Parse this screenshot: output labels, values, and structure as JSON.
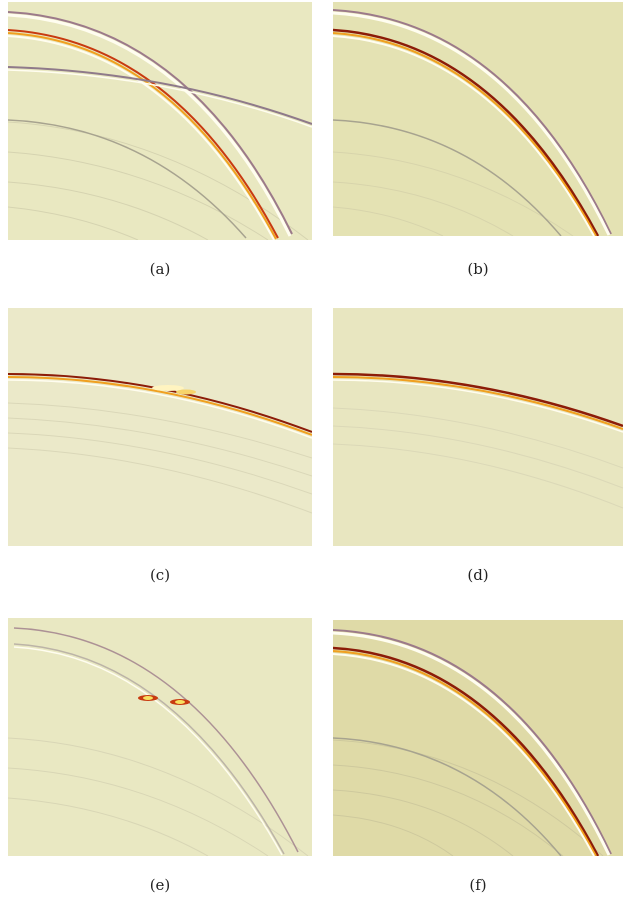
{
  "figure": {
    "panels": [
      {
        "id": "a",
        "caption": "(a)",
        "background": "#e9e8c1"
      },
      {
        "id": "b",
        "caption": "(b)",
        "background": "#e4e2b3"
      },
      {
        "id": "c",
        "caption": "(c)",
        "background": "#ebe9c9"
      },
      {
        "id": "d",
        "caption": "(d)",
        "background": "#e8e6c0"
      },
      {
        "id": "e",
        "caption": "(e)",
        "background": "#e9e8c2"
      },
      {
        "id": "f",
        "caption": "(f)",
        "background": "#dfdaa7"
      }
    ],
    "colors": {
      "dark_red": "#8c1c08",
      "red": "#c83a10",
      "orange": "#f0a020",
      "yellow": "#f8e060",
      "white": "#fffdf0",
      "mauve": "#9c7a8a",
      "grey": "#a7a38f"
    }
  }
}
